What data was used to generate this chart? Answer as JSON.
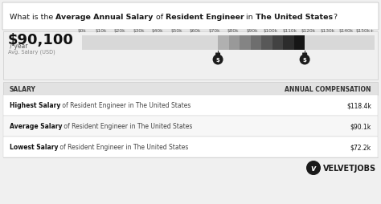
{
  "title_parts": [
    [
      "What is the ",
      "normal"
    ],
    [
      "Average Annual Salary",
      "bold"
    ],
    [
      " of ",
      "normal"
    ],
    [
      "Resident Engineer",
      "bold"
    ],
    [
      " in ",
      "normal"
    ],
    [
      "The United States",
      "bold"
    ],
    [
      "?",
      "normal"
    ]
  ],
  "main_salary": "$90,100",
  "main_salary_unit": " / year",
  "avg_label": "Avg. Salary (USD)",
  "tick_labels": [
    "$0k",
    "$10k",
    "$20k",
    "$30k",
    "$40k",
    "$50k",
    "$60k",
    "$70k",
    "$80k",
    "$90k",
    "$100k",
    "$110k",
    "$120k",
    "$130k",
    "$140k",
    "$150k+"
  ],
  "tick_values": [
    0,
    10,
    20,
    30,
    40,
    50,
    60,
    70,
    80,
    90,
    100,
    110,
    120,
    130,
    140,
    150
  ],
  "bar_total_max": 155,
  "low_salary": 72,
  "high_salary": 118,
  "table_header_left": "SALARY",
  "table_header_right": "ANNUAL COMPENSATION",
  "table_rows": [
    {
      "label_bold": "Highest Salary",
      "label_rest": " of Resident Engineer in The United States",
      "value": "$118.4k"
    },
    {
      "label_bold": "Average Salary",
      "label_rest": " of Resident Engineer in The United States",
      "value": "$90.1k"
    },
    {
      "label_bold": "Lowest Salary",
      "label_rest": " of Resident Engineer in The United States",
      "value": "$72.2k"
    }
  ],
  "brand": "VELVETJOBS",
  "bg_color": "#f0f0f0",
  "title_bg": "#ffffff",
  "bar_bg_color": "#d8d8d8",
  "bar_segment_colors": [
    "#b0b0b0",
    "#999999",
    "#848484",
    "#6e6e6e",
    "#585858",
    "#424242",
    "#2c2c2c",
    "#161616"
  ],
  "table_header_bg": "#e2e2e2",
  "table_row_bg1": "#ffffff",
  "table_row_bg2": "#f7f7f7",
  "border_color": "#cccccc"
}
